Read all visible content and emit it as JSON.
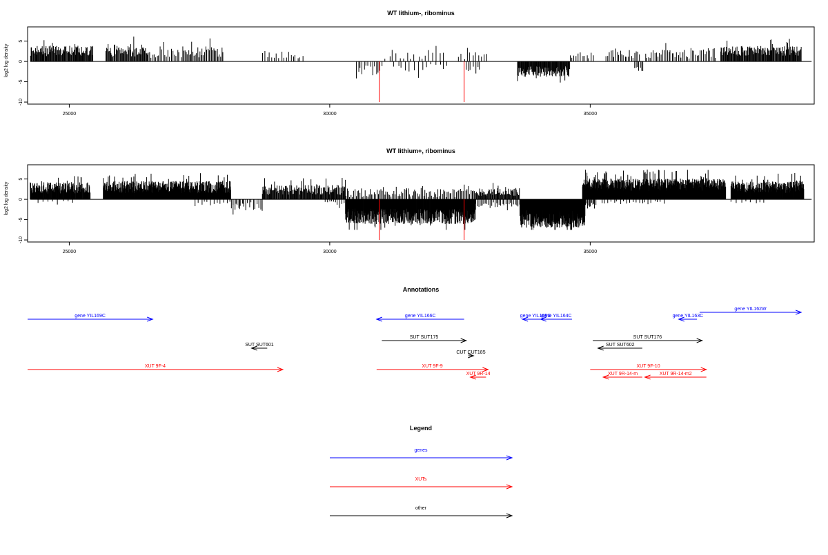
{
  "colors": {
    "bar": "#000000",
    "marker": "#ff0000",
    "genes": "#0000ff",
    "xuts": "#ff0000",
    "other": "#000000",
    "axis": "#000000"
  },
  "chart_data": [
    {
      "type": "bar",
      "title": "WT lithium-, ribominus",
      "xlabel": "",
      "ylabel": "log2 log density",
      "xlim": [
        24200,
        39300
      ],
      "ylim": [
        -10.5,
        8.5
      ],
      "xticks": [
        25000,
        30000,
        35000
      ],
      "xtick_labels": [
        "25000",
        "30000",
        "35000"
      ],
      "yticks": [
        -10,
        -5,
        0,
        5
      ],
      "ytick_labels": [
        "-10",
        "-5",
        "0",
        "5"
      ],
      "grid": false,
      "baseline_range": [
        24250,
        39250
      ],
      "markers": [
        {
          "x": 30950,
          "y": -10.0
        },
        {
          "x": 32580,
          "y": -10.0
        }
      ],
      "segments": [
        {
          "from": 24250,
          "to": 25450,
          "step": 12,
          "sign": 1,
          "mean": 2.6,
          "var": 1.3
        },
        {
          "from": 25700,
          "to": 26500,
          "step": 14,
          "sign": 1,
          "mean": 2.7,
          "var": 1.6
        },
        {
          "from": 26500,
          "to": 27100,
          "step": 30,
          "sign": 1,
          "mean": 2.0,
          "var": 1.2
        },
        {
          "from": 27150,
          "to": 27950,
          "step": 22,
          "sign": 1,
          "mean": 2.3,
          "var": 1.4
        },
        {
          "from": 28700,
          "to": 29500,
          "step": 45,
          "sign": 1,
          "mean": 1.6,
          "var": 1.0
        },
        {
          "from": 30500,
          "to": 31000,
          "step": 38,
          "sign": -1,
          "mean": 2.2,
          "var": 1.2
        },
        {
          "from": 31050,
          "to": 32200,
          "step": 70,
          "sign": 1,
          "mean": 1.5,
          "var": 1.0
        },
        {
          "from": 31200,
          "to": 32300,
          "step": 80,
          "sign": -1,
          "mean": 1.6,
          "var": 1.0
        },
        {
          "from": 32450,
          "to": 33000,
          "step": 55,
          "sign": 1,
          "mean": 1.4,
          "var": 0.9
        },
        {
          "from": 32600,
          "to": 32900,
          "step": 45,
          "sign": -1,
          "mean": 2.0,
          "var": 1.0
        },
        {
          "from": 33600,
          "to": 34600,
          "step": 10,
          "sign": -1,
          "mean": 2.5,
          "var": 1.3
        },
        {
          "from": 34600,
          "to": 35050,
          "step": 40,
          "sign": 1,
          "mean": 1.4,
          "var": 0.9
        },
        {
          "from": 35300,
          "to": 35950,
          "step": 30,
          "sign": 1,
          "mean": 1.8,
          "var": 1.0
        },
        {
          "from": 35850,
          "to": 36000,
          "step": 25,
          "sign": -1,
          "mean": 1.6,
          "var": 0.8
        },
        {
          "from": 36050,
          "to": 37400,
          "step": 30,
          "sign": 1,
          "mean": 2.0,
          "var": 1.3
        },
        {
          "from": 37500,
          "to": 39050,
          "step": 12,
          "sign": 1,
          "mean": 2.6,
          "var": 1.2
        }
      ]
    },
    {
      "type": "bar",
      "title": "WT lithium+, ribominus",
      "xlabel": "",
      "ylabel": "log2 log density",
      "xlim": [
        24200,
        39300
      ],
      "ylim": [
        -10.5,
        8.5
      ],
      "xticks": [
        25000,
        30000,
        35000
      ],
      "xtick_labels": [
        "25000",
        "30000",
        "35000"
      ],
      "yticks": [
        -10,
        -5,
        0,
        5
      ],
      "ytick_labels": [
        "-10",
        "-5",
        "0",
        "5"
      ],
      "grid": false,
      "baseline_range": [
        24250,
        39250
      ],
      "markers": [
        {
          "x": 30950,
          "y": -10.0
        },
        {
          "x": 32580,
          "y": -10.0
        }
      ],
      "segments": [
        {
          "from": 24250,
          "to": 25400,
          "step": 7,
          "sign": 1,
          "mean": 2.8,
          "var": 1.4
        },
        {
          "from": 24400,
          "to": 25100,
          "step": 90,
          "sign": -1,
          "mean": 0.7,
          "var": 0.3
        },
        {
          "from": 25650,
          "to": 28100,
          "step": 6,
          "sign": 1,
          "mean": 3.0,
          "var": 1.5
        },
        {
          "from": 27400,
          "to": 28300,
          "step": 60,
          "sign": -1,
          "mean": 1.1,
          "var": 0.6
        },
        {
          "from": 28100,
          "to": 28700,
          "step": 35,
          "sign": -1,
          "mean": 1.7,
          "var": 1.0
        },
        {
          "from": 28700,
          "to": 30300,
          "step": 12,
          "sign": 1,
          "mean": 2.3,
          "var": 1.2
        },
        {
          "from": 29900,
          "to": 30300,
          "step": 40,
          "sign": -1,
          "mean": 1.0,
          "var": 0.5
        },
        {
          "from": 30300,
          "to": 32800,
          "step": 6,
          "sign": -1,
          "mean": 4.2,
          "var": 1.9
        },
        {
          "from": 30300,
          "to": 32800,
          "step": 25,
          "sign": 1,
          "mean": 1.6,
          "var": 1.1
        },
        {
          "from": 32800,
          "to": 33650,
          "step": 12,
          "sign": 1,
          "mean": 1.8,
          "var": 1.0
        },
        {
          "from": 32800,
          "to": 33650,
          "step": 30,
          "sign": -1,
          "mean": 1.2,
          "var": 0.7
        },
        {
          "from": 33650,
          "to": 34900,
          "step": 4,
          "sign": -1,
          "mean": 4.8,
          "var": 2.2
        },
        {
          "from": 34900,
          "to": 35100,
          "step": 20,
          "sign": -1,
          "mean": 1.5,
          "var": 0.8
        },
        {
          "from": 34850,
          "to": 37600,
          "step": 5,
          "sign": 1,
          "mean": 3.6,
          "var": 1.5
        },
        {
          "from": 35200,
          "to": 36400,
          "step": 60,
          "sign": -1,
          "mean": 0.8,
          "var": 0.4
        },
        {
          "from": 37700,
          "to": 39100,
          "step": 6,
          "sign": 1,
          "mean": 3.0,
          "var": 1.4
        },
        {
          "from": 37700,
          "to": 38400,
          "step": 90,
          "sign": -1,
          "mean": 0.7,
          "var": 0.3
        }
      ]
    },
    {
      "type": "other",
      "title": "Annotations",
      "xlim": [
        24200,
        39300
      ],
      "features": [
        {
          "label": "gene YIL169C",
          "category": "genes",
          "start": 24200,
          "end": 26600,
          "strand": "+",
          "row": 0
        },
        {
          "label": "gene YIL166C",
          "category": "genes",
          "start": 30900,
          "end": 32580,
          "strand": "-",
          "row": 0
        },
        {
          "label": "gene YIL165C",
          "category": "genes",
          "start": 33700,
          "end": 34200,
          "strand": "-",
          "row": 0
        },
        {
          "label": "gene YIL164C",
          "category": "genes",
          "start": 34050,
          "end": 34650,
          "strand": "-",
          "row": 0
        },
        {
          "label": "gene YIL163C",
          "category": "genes",
          "start": 36700,
          "end": 37050,
          "strand": "-",
          "row": 0
        },
        {
          "label": "gene YIL162W",
          "category": "genes",
          "start": 37100,
          "end": 39050,
          "strand": "+",
          "row": -1
        },
        {
          "label": "SUT SUT601",
          "category": "other",
          "start": 28500,
          "end": 28800,
          "strand": "-",
          "row": 1
        },
        {
          "label": "SUT SUT175",
          "category": "other",
          "start": 31000,
          "end": 32620,
          "strand": "+",
          "row": 2
        },
        {
          "label": "CUT CUT185",
          "category": "other",
          "start": 32660,
          "end": 32760,
          "strand": "+",
          "row": 3
        },
        {
          "label": "SUT SUT176",
          "category": "other",
          "start": 35050,
          "end": 37150,
          "strand": "+",
          "row": 2
        },
        {
          "label": "SUT SUT602",
          "category": "other",
          "start": 35150,
          "end": 36000,
          "strand": "-",
          "row": 1
        },
        {
          "label": "XUT 9F-4",
          "category": "xuts",
          "start": 24200,
          "end": 29100,
          "strand": "+",
          "row": 4
        },
        {
          "label": "XUT 9F-9",
          "category": "xuts",
          "start": 30900,
          "end": 33040,
          "strand": "+",
          "row": 4
        },
        {
          "label": "XUT 9R-14",
          "category": "xuts",
          "start": 32700,
          "end": 33000,
          "strand": "-",
          "row": 5
        },
        {
          "label": "XUT 9F-10",
          "category": "xuts",
          "start": 35000,
          "end": 37230,
          "strand": "+",
          "row": 4
        },
        {
          "label": "XUT 9R-14-m",
          "category": "xuts",
          "start": 35250,
          "end": 36000,
          "strand": "-",
          "row": 5
        },
        {
          "label": "XUT 9R-14-m2",
          "category": "xuts",
          "start": 36050,
          "end": 37230,
          "strand": "-",
          "row": 5
        }
      ]
    }
  ],
  "legend": {
    "title": "Legend",
    "entries": [
      {
        "label": "genes",
        "category": "genes"
      },
      {
        "label": "XUTs",
        "category": "xuts"
      },
      {
        "label": "other",
        "category": "other"
      }
    ]
  }
}
